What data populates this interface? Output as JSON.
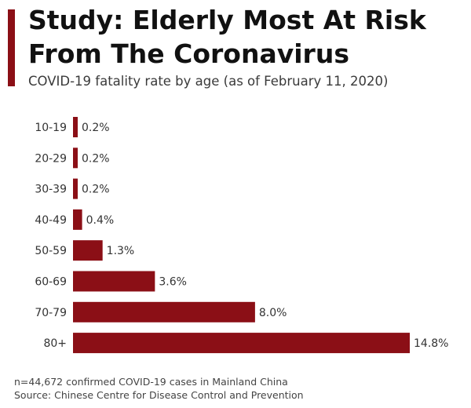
{
  "header": {
    "title_line1": "Study: Elderly Most At Risk",
    "title_line2": "From The Coronavirus",
    "subtitle": "COVID-19 fatality rate by age (as of February 11, 2020)"
  },
  "colors": {
    "accent": "#8b0f16",
    "bar": "#8b0f16"
  },
  "chart_data": {
    "type": "bar",
    "orientation": "horizontal",
    "title": "Study: Elderly Most At Risk From The Coronavirus",
    "subtitle": "COVID-19 fatality rate by age (as of February 11, 2020)",
    "categories": [
      "10-19",
      "20-29",
      "30-39",
      "40-49",
      "50-59",
      "60-69",
      "70-79",
      "80+"
    ],
    "values": [
      0.2,
      0.2,
      0.2,
      0.4,
      1.3,
      3.6,
      8.0,
      14.8
    ],
    "value_labels": [
      "0.2%",
      "0.2%",
      "0.2%",
      "0.4%",
      "1.3%",
      "3.6%",
      "8.0%",
      "14.8%"
    ],
    "xlim": [
      0,
      14.8
    ],
    "grid": false,
    "legend": "none"
  },
  "footer": {
    "note": "n=44,672 confirmed COVID-19 cases in Mainland China",
    "source": "Source: Chinese Centre for Disease Control and Prevention"
  }
}
